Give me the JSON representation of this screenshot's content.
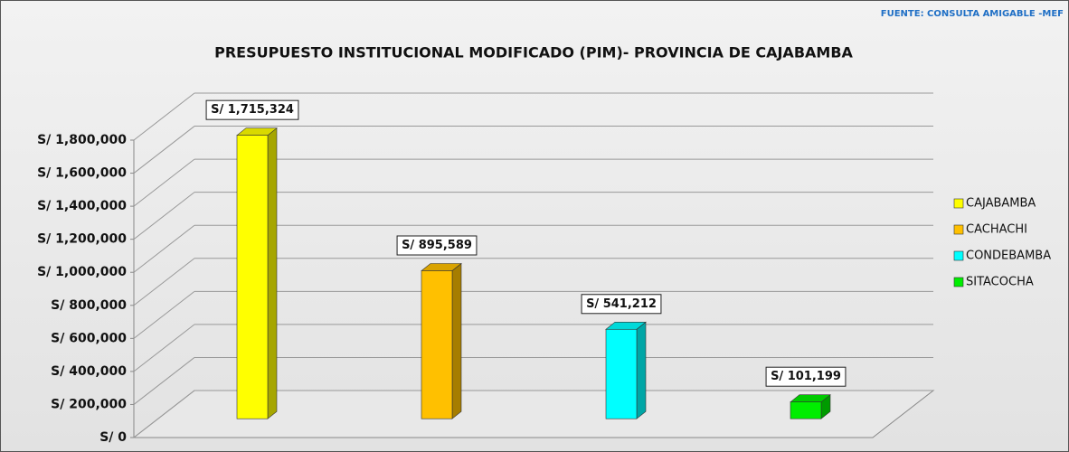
{
  "chart_data": {
    "type": "bar3d",
    "title": "PRESUPUESTO INSTITUCIONAL MODIFICADO (PIM)- PROVINCIA DE CAJABAMBA",
    "source": "FUENTE: CONSULTA AMIGABLE -MEF",
    "categories": [
      "CAJABAMBA",
      "CACHACHI",
      "CONDEBAMBA",
      "SITACOCHA"
    ],
    "values": [
      1715324,
      895589,
      541212,
      101199
    ],
    "value_labels": [
      "S/ 1,715,324",
      "S/ 895,589",
      "S/ 541,212",
      "S/ 101,199"
    ],
    "colors": [
      "#ffff00",
      "#ffc000",
      "#00ffff",
      "#00ee00"
    ],
    "ylim": [
      0,
      1800000
    ],
    "yticks": [
      {
        "value": 0,
        "label": "S/ 0"
      },
      {
        "value": 200000,
        "label": "S/ 200,000"
      },
      {
        "value": 400000,
        "label": "S/ 400,000"
      },
      {
        "value": 600000,
        "label": "S/ 600,000"
      },
      {
        "value": 800000,
        "label": "S/ 800,000"
      },
      {
        "value": 1000000,
        "label": "S/ 1,000,000"
      },
      {
        "value": 1200000,
        "label": "S/ 1,200,000"
      },
      {
        "value": 1400000,
        "label": "S/ 1,400,000"
      },
      {
        "value": 1600000,
        "label": "S/ 1,600,000"
      },
      {
        "value": 1800000,
        "label": "S/ 1,800,000"
      }
    ],
    "grid": true,
    "legend": "right"
  }
}
